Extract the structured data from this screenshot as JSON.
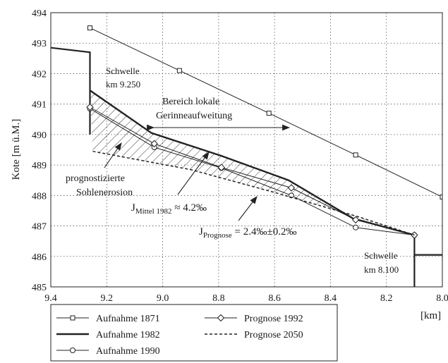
{
  "chart_data": {
    "type": "line",
    "ylabel": "Kote [m ü.M.]",
    "xlabel": "[km]",
    "xlim": [
      9.4,
      8.0
    ],
    "ylim": [
      485,
      494
    ],
    "xticks": [
      "9.4",
      "9.2",
      "9.0",
      "8.8",
      "8.6",
      "8.4",
      "8.2",
      "8.0"
    ],
    "yticks": [
      "485",
      "486",
      "487",
      "488",
      "489",
      "490",
      "491",
      "492",
      "493",
      "494"
    ],
    "grid": "dotted",
    "legend_position": "bottom-left",
    "series": [
      {
        "name": "Aufnahme 1871",
        "style": "thin-square",
        "points": [
          [
            9.26,
            493.5
          ],
          [
            8.94,
            492.1
          ],
          [
            8.62,
            490.7
          ],
          [
            8.31,
            489.33
          ],
          [
            8.0,
            487.95
          ]
        ]
      },
      {
        "name": "Aufnahme 1982",
        "style": "thick",
        "points": [
          [
            9.26,
            491.45
          ],
          [
            9.04,
            490.05
          ],
          [
            8.79,
            489.3
          ],
          [
            8.55,
            488.5
          ],
          [
            8.32,
            487.25
          ],
          [
            8.1,
            486.7
          ]
        ]
      },
      {
        "name": "Aufnahme 1990",
        "style": "thin-circle",
        "points": [
          [
            9.26,
            490.85
          ],
          [
            9.03,
            489.58
          ],
          [
            8.79,
            488.9
          ],
          [
            8.54,
            488.0
          ],
          [
            8.31,
            486.95
          ],
          [
            8.1,
            486.7
          ]
        ]
      },
      {
        "name": "Prognose 1992",
        "style": "thin-diamond",
        "points": [
          [
            9.26,
            490.9
          ],
          [
            9.03,
            489.7
          ],
          [
            8.79,
            488.92
          ],
          [
            8.54,
            488.25
          ],
          [
            8.31,
            487.2
          ],
          [
            8.1,
            486.7
          ]
        ]
      },
      {
        "name": "Prognose 2050",
        "style": "dashed",
        "points": [
          [
            9.25,
            489.45
          ],
          [
            8.9,
            488.85
          ],
          [
            8.6,
            488.1
          ],
          [
            8.3,
            487.3
          ],
          [
            8.1,
            486.7
          ]
        ]
      }
    ],
    "upstream_profile": [
      [
        9.4,
        492.85
      ],
      [
        9.26,
        492.7
      ],
      [
        9.26,
        490.0
      ]
    ],
    "downstream_profile": [
      [
        8.1,
        486.7
      ],
      [
        8.1,
        485.0
      ]
    ],
    "downstream_step": [
      [
        8.1,
        486.05
      ],
      [
        8.0,
        486.05
      ]
    ],
    "annotations": {
      "schwelle_upper": [
        "Schwelle",
        "km 9.250"
      ],
      "schwelle_lower": [
        "Schwelle",
        "km 8.100"
      ],
      "bereich": [
        "Bereich lokale",
        "Gerinneaufweitung"
      ],
      "erosion": [
        "prognostizierte",
        "Sohlenerosion"
      ],
      "j_mittel": {
        "main": "J",
        "sub": "Mittel 1982",
        "rest": " ≈ 4.2‰"
      },
      "j_prognose": {
        "main": "J",
        "sub": "Prognose",
        "rest": " = 2.4‰±0.2‰"
      }
    },
    "legend": [
      {
        "label": "Aufnahme 1871",
        "style": "thin-square"
      },
      {
        "label": "Prognose 1992",
        "style": "thin-diamond"
      },
      {
        "label": "Aufnahme 1982",
        "style": "thick"
      },
      {
        "label": "Prognose 2050",
        "style": "dashed"
      },
      {
        "label": "Aufnahme 1990",
        "style": "thin-circle"
      }
    ]
  }
}
